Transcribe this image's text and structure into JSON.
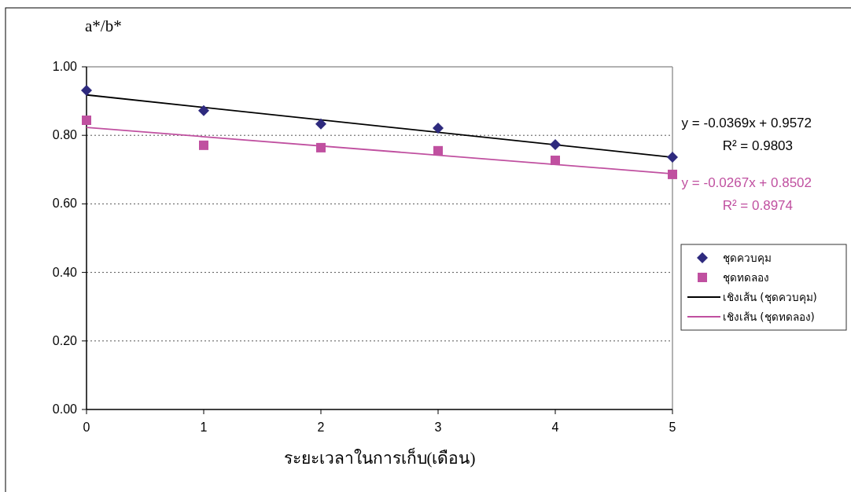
{
  "chart_data": {
    "type": "scatter",
    "xlabel": "ระยะเวลาในการเก็บ(เดือน)",
    "ylabel": "a*/b*",
    "xlim": [
      0,
      5
    ],
    "xticks": [
      0,
      1,
      2,
      3,
      4,
      5
    ],
    "ylim": [
      0,
      1
    ],
    "yticks": [
      {
        "value": 0,
        "label": "0.00"
      },
      {
        "value": 0.2,
        "label": "0.20"
      },
      {
        "value": 0.4,
        "label": "0.40"
      },
      {
        "value": 0.6,
        "label": "0.60"
      },
      {
        "value": 0.8,
        "label": "0.80"
      },
      {
        "value": 1,
        "label": "1.00"
      }
    ],
    "grid": "y",
    "legend": "right",
    "series": [
      {
        "name": "ชุดควบคุม",
        "marker": "diamond",
        "color": "#2e2a7e",
        "x": [
          0,
          1,
          2,
          3,
          4,
          5
        ],
        "values": [
          0.931,
          0.872,
          0.833,
          0.821,
          0.773,
          0.736
        ]
      },
      {
        "name": "ชุดทดลอง",
        "marker": "square",
        "color": "#c050a0",
        "x": [
          0,
          1,
          2,
          3,
          4,
          5
        ],
        "values": [
          0.844,
          0.771,
          0.764,
          0.755,
          0.727,
          0.686
        ]
      },
      {
        "name": "เชิงเส้น (ชุดควบคุม)",
        "type": "line",
        "marker": "none",
        "color": "#000000",
        "x": [
          0,
          5
        ],
        "values": [
          0.918,
          0.736
        ]
      },
      {
        "name": "เชิงเส้น (ชุดทดลอง)",
        "type": "line",
        "marker": "none",
        "color": "#c050a0",
        "x": [
          0,
          5
        ],
        "values": [
          0.823,
          0.688
        ]
      }
    ],
    "annotations": [
      "y = -0.0369x + 0.9572\nR² = 0.9803",
      "y = -0.0267x + 0.8502\nR² = 0.8974"
    ]
  }
}
